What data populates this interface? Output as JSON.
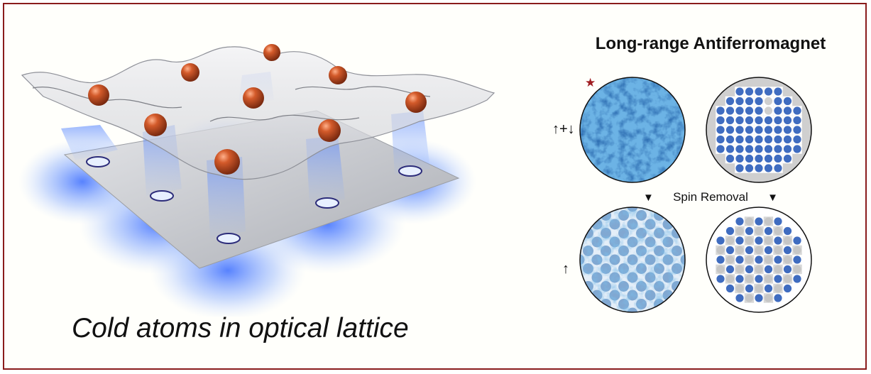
{
  "caption": "Cold atoms in optical lattice",
  "afm": {
    "title": "Long-range Antiferromagnet",
    "row_top_label": "↑+↓",
    "row_bottom_label": "↑",
    "spin_removal_label": "Spin Removal",
    "arrow_glyph": "▼",
    "star_glyph": "★"
  },
  "colors": {
    "frame": "#8a1c1c",
    "atom": "#b8461e",
    "laser": "#3a7bff",
    "site_blue": "#3f6cc0",
    "site_gray": "#cfcfcf",
    "star": "#a01e22"
  }
}
